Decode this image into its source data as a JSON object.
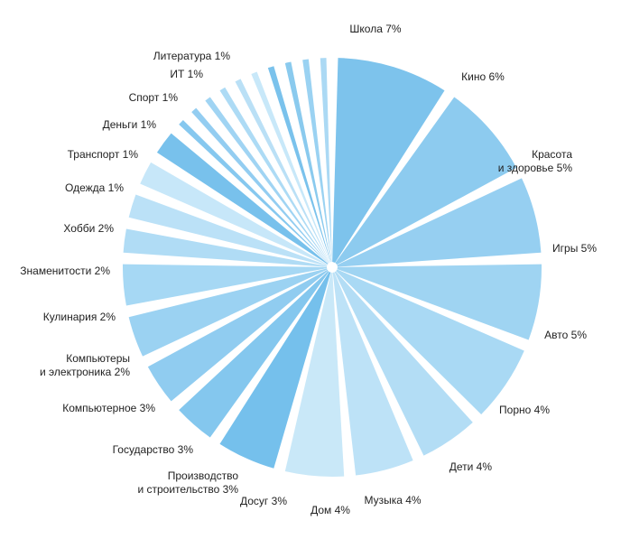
{
  "chart_data": {
    "type": "pie",
    "title": "",
    "unit": "%",
    "slices": [
      {
        "label": [
          "Школа 7%"
        ],
        "value": 7,
        "color": "#7dc3ec"
      },
      {
        "label": [
          "Кино 6%"
        ],
        "value": 6,
        "color": "#8dcbef"
      },
      {
        "label": [
          "Красота",
          "и здоровье 5%"
        ],
        "value": 5,
        "color": "#96cff1"
      },
      {
        "label": [
          "Игры 5%"
        ],
        "value": 5,
        "color": "#9fd4f2"
      },
      {
        "label": [
          "Авто 5%"
        ],
        "value": 5,
        "color": "#a9d9f4"
      },
      {
        "label": [
          "Порно 4%"
        ],
        "value": 4,
        "color": "#b3ddf5"
      },
      {
        "label": [
          "Дети 4%"
        ],
        "value": 4,
        "color": "#bde2f7"
      },
      {
        "label": [
          "Музыка 4%"
        ],
        "value": 4,
        "color": "#c9e8f8"
      },
      {
        "label": [
          "Дом 4%"
        ],
        "value": 4,
        "color": "#75c0ec"
      },
      {
        "label": [
          "Досуг 3%"
        ],
        "value": 3,
        "color": "#84c7ee"
      },
      {
        "label": [
          "Производство",
          "и строительство 3%"
        ],
        "value": 3,
        "color": "#90ccf0"
      },
      {
        "label": [
          "Государство 3%"
        ],
        "value": 3,
        "color": "#9bd2f2"
      },
      {
        "label": [
          "Компьютерное 3%"
        ],
        "value": 3,
        "color": "#a6d8f4"
      },
      {
        "label": [
          "Компьютеры",
          "и электроника 2%"
        ],
        "value": 2,
        "color": "#b0dcf5"
      },
      {
        "label": [
          "Кулинария 2%"
        ],
        "value": 2,
        "color": "#bbe1f7"
      },
      {
        "label": [
          "Знаменитости 2%"
        ],
        "value": 2,
        "color": "#c7e7f9"
      },
      {
        "label": [
          "Хобби 2%"
        ],
        "value": 2,
        "color": "#78c1ec"
      },
      {
        "label": [
          "Одежда 1%"
        ],
        "value": 1,
        "color": "#86c8ef"
      },
      {
        "label": [
          "Транспорт 1%"
        ],
        "value": 1,
        "color": "#93cdf1"
      },
      {
        "label": [
          "Деньги 1%"
        ],
        "value": 1,
        "color": "#a0d4f3"
      },
      {
        "label": [
          "Спорт 1%"
        ],
        "value": 1,
        "color": "#addbf5"
      },
      {
        "label": [
          "ИТ 1%"
        ],
        "value": 1,
        "color": "#bae0f6"
      },
      {
        "label": [
          "Литература 1%"
        ],
        "value": 1,
        "color": "#c8e8f9"
      },
      {
        "label": [],
        "value": 1,
        "color": "#7ac2ec"
      },
      {
        "label": [],
        "value": 1,
        "color": "#8acaee"
      },
      {
        "label": [],
        "value": 1,
        "color": "#9ad2f2"
      },
      {
        "label": [],
        "value": 1,
        "color": "#abd9f4"
      }
    ]
  }
}
